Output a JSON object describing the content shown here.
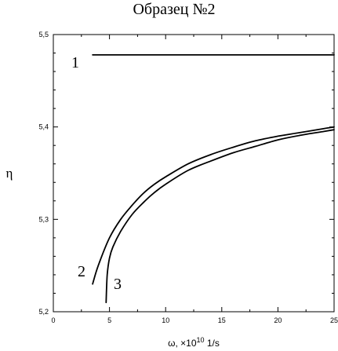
{
  "chart_data": {
    "type": "line",
    "title": "Образец №2",
    "xlabel": "ω, ×10",
    "xlabel_exp": "10",
    "xlabel_unit": " 1/s",
    "ylabel": "η",
    "xlim": [
      0,
      25
    ],
    "ylim": [
      5.2,
      5.5
    ],
    "x_ticks": [
      "0",
      "5",
      "10",
      "15",
      "20",
      "25"
    ],
    "y_ticks": [
      "5,2",
      "5,3",
      "5,4",
      "5,5"
    ],
    "grid": false,
    "series": [
      {
        "label": "1",
        "x": [
          3.5,
          25
        ],
        "y": [
          5.478,
          5.478
        ]
      },
      {
        "label": "2",
        "x": [
          3.5,
          4.0,
          5.0,
          6.0,
          7.0,
          8.0,
          9.0,
          10.0,
          12.0,
          14.0,
          16.0,
          18.0,
          20.0,
          22.0,
          24.0,
          25.0
        ],
        "y": [
          5.23,
          5.25,
          5.28,
          5.3,
          5.315,
          5.328,
          5.338,
          5.346,
          5.36,
          5.37,
          5.378,
          5.385,
          5.39,
          5.394,
          5.398,
          5.4
        ]
      },
      {
        "label": "3",
        "x": [
          4.7,
          4.8,
          5.0,
          5.3,
          6.0,
          7.0,
          8.0,
          9.0,
          10.0,
          12.0,
          14.0,
          16.0,
          18.0,
          20.0,
          22.0,
          24.0,
          25.0
        ],
        "y": [
          5.21,
          5.24,
          5.258,
          5.27,
          5.287,
          5.305,
          5.318,
          5.329,
          5.338,
          5.353,
          5.363,
          5.372,
          5.379,
          5.386,
          5.391,
          5.395,
          5.397
        ]
      }
    ]
  }
}
